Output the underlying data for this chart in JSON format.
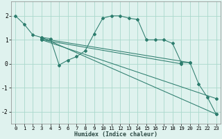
{
  "xlabel": "Humidex (Indice chaleur)",
  "bg_color": "#dff2ee",
  "line_color": "#2d7d6e",
  "grid_color": "#aad8cc",
  "xlim": [
    -0.5,
    23.5
  ],
  "ylim": [
    -2.5,
    2.6
  ],
  "yticks": [
    -2,
    -1,
    0,
    1,
    2
  ],
  "xticks": [
    0,
    1,
    2,
    3,
    4,
    5,
    6,
    7,
    8,
    9,
    10,
    11,
    12,
    13,
    14,
    15,
    16,
    17,
    18,
    19,
    20,
    21,
    22,
    23
  ],
  "line1_x": [
    0,
    1,
    2,
    3,
    4,
    5,
    6,
    7,
    8,
    9,
    10,
    11,
    12,
    13,
    14,
    15,
    16,
    17,
    18,
    19,
    20,
    21,
    22,
    23
  ],
  "line1_y": [
    2.0,
    1.65,
    1.2,
    1.1,
    1.05,
    -0.05,
    0.15,
    0.3,
    0.55,
    1.25,
    1.9,
    2.0,
    2.0,
    1.9,
    1.85,
    1.0,
    1.0,
    1.0,
    0.85,
    0.05,
    0.05,
    -0.85,
    -1.4,
    -2.1
  ],
  "line2_x": [
    3,
    23
  ],
  "line2_y": [
    1.1,
    -2.1
  ],
  "line3_x": [
    3,
    20
  ],
  "line3_y": [
    1.05,
    0.05
  ],
  "line4_x": [
    3,
    19
  ],
  "line4_y": [
    1.0,
    0.0
  ],
  "line5_x": [
    3,
    23
  ],
  "line5_y": [
    1.0,
    -1.45
  ],
  "xlabel_fontsize": 6.0,
  "tick_fontsize": 5.2,
  "ytick_fontsize": 5.8,
  "lw": 0.75,
  "marker_size": 2.0
}
